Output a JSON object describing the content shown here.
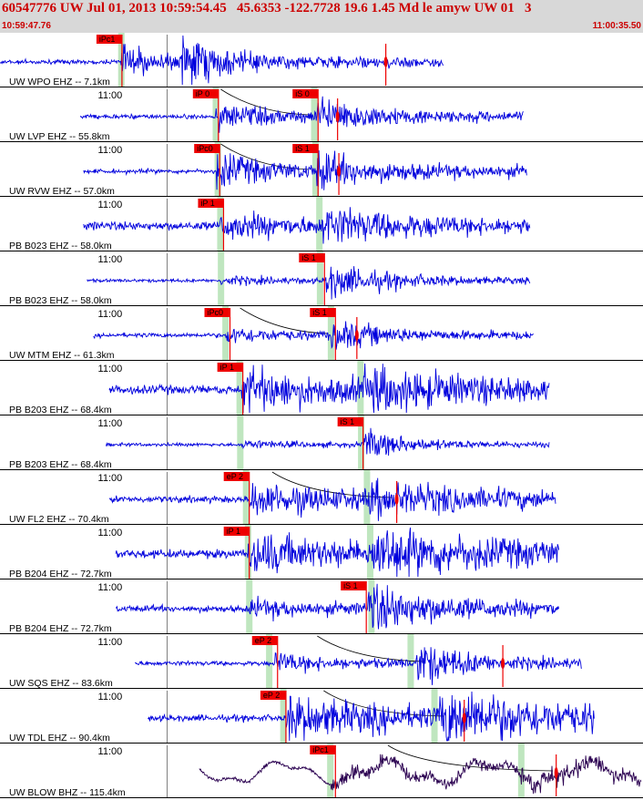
{
  "header": {
    "title": "60547776 UW Jul 01, 2013 10:59:54.45   45.6353 -122.7728 19.6 1.45 Md le amyw UW 01   3",
    "start_time": "10:59:47.76",
    "end_time": "11:00:35.50"
  },
  "colors": {
    "trace": "#0000dd",
    "trace_broadband": "#2a0050",
    "pick_label_bg": "#ee0000",
    "pick_line": "#ee0000",
    "theory_band": "#bfe6bf",
    "header_bg": "#d8d8d8"
  },
  "minute_label": "11:00",
  "traces": [
    {
      "label": "UW WPO EHZ -- 7.1km",
      "picks": [
        {
          "text": "iPc1",
          "t": 0.15
        }
      ],
      "theory": [
        0.188
      ],
      "sig_start": 0.0,
      "sig_end": 0.69,
      "p": 0.188,
      "s": 0.28,
      "amp_noise": 2,
      "amp_p": 12,
      "amp_s": 22,
      "coda": 0.06,
      "red_marks": [
        0.6
      ]
    },
    {
      "label": "UW LVP EHZ -- 55.8km",
      "picks": [
        {
          "text": "iP 0",
          "t": 0.3
        },
        {
          "text": "iS 0",
          "t": 0.455
        }
      ],
      "theory": [
        0.335,
        0.488
      ],
      "sig_start": 0.125,
      "sig_end": 0.815,
      "p": 0.336,
      "s": 0.49,
      "amp_noise": 2,
      "amp_p": 10,
      "amp_s": 16,
      "coda": 0.08,
      "red_marks": [
        0.525
      ],
      "curve": [
        0.4,
        0.48
      ]
    },
    {
      "label": "UW RVW EHZ -- 57.0km",
      "picks": [
        {
          "text": "iPc0",
          "t": 0.302
        },
        {
          "text": "iS 1",
          "t": 0.455
        }
      ],
      "theory": [
        0.338,
        0.49
      ],
      "sig_start": 0.13,
      "sig_end": 0.82,
      "p": 0.337,
      "s": 0.492,
      "amp_noise": 2,
      "amp_p": 14,
      "amp_s": 14,
      "coda": 0.08,
      "red_marks": [
        0.527
      ],
      "curve": [
        0.4,
        0.48
      ]
    },
    {
      "label": "PB B023 EHZ -- 58.0km",
      "picks": [
        {
          "text": "iP 1",
          "t": 0.308
        }
      ],
      "theory": [
        0.342,
        0.496
      ],
      "sig_start": 0.13,
      "sig_end": 0.825,
      "p": 0.343,
      "s": 0.5,
      "amp_noise": 4,
      "amp_p": 9,
      "amp_s": 13,
      "coda": 0.12,
      "red_marks": []
    },
    {
      "label": "PB B023 EHZ -- 58.0km",
      "picks": [
        {
          "text": "iS 1",
          "t": 0.465
        }
      ],
      "theory": [
        0.343,
        0.497
      ],
      "sig_start": 0.135,
      "sig_end": 0.825,
      "p": 0.343,
      "s": 0.505,
      "amp_noise": 1.5,
      "amp_p": 3,
      "amp_s": 15,
      "coda": 0.1,
      "red_marks": []
    },
    {
      "label": "UW MTM EHZ -- 61.3km",
      "picks": [
        {
          "text": "iPc0",
          "t": 0.318
        },
        {
          "text": "iS 1",
          "t": 0.482
        }
      ],
      "theory": [
        0.35,
        0.514
      ],
      "sig_start": 0.145,
      "sig_end": 0.83,
      "p": 0.352,
      "s": 0.515,
      "amp_noise": 2,
      "amp_p": 6,
      "amp_s": 12,
      "coda": 0.08,
      "red_marks": [
        0.555
      ],
      "curve": [
        0.43,
        0.51
      ]
    },
    {
      "label": "PB B203 EHZ -- 68.4km",
      "picks": [
        {
          "text": "iP 1",
          "t": 0.338
        }
      ],
      "theory": [
        0.372,
        0.56
      ],
      "sig_start": 0.17,
      "sig_end": 0.855,
      "p": 0.376,
      "s": 0.565,
      "amp_noise": 4,
      "amp_p": 16,
      "amp_s": 15,
      "coda": 0.15,
      "red_marks": []
    },
    {
      "label": "PB B203 EHZ -- 68.4km",
      "picks": [
        {
          "text": "iS 1",
          "t": 0.525
        }
      ],
      "theory": [
        0.373,
        0.561
      ],
      "sig_start": 0.165,
      "sig_end": 0.855,
      "p": 0.376,
      "s": 0.566,
      "amp_noise": 1.5,
      "amp_p": 3,
      "amp_s": 13,
      "coda": 0.07,
      "red_marks": []
    },
    {
      "label": "UW FL2 EHZ -- 70.4km",
      "picks": [
        {
          "text": "eP 2",
          "t": 0.348
        }
      ],
      "theory": [
        0.382,
        0.57
      ],
      "sig_start": 0.17,
      "sig_end": 0.865,
      "p": 0.388,
      "s": 0.575,
      "amp_noise": 3,
      "amp_p": 12,
      "amp_s": 10,
      "coda": 0.18,
      "red_marks": [
        0.617
      ],
      "curve": [
        0.48,
        0.61
      ]
    },
    {
      "label": "PB B204 EHZ -- 72.7km",
      "picks": [
        {
          "text": "iP 1",
          "t": 0.348
        }
      ],
      "theory": [
        0.385,
        0.575
      ],
      "sig_start": 0.18,
      "sig_end": 0.87,
      "p": 0.386,
      "s": 0.578,
      "amp_noise": 4,
      "amp_p": 14,
      "amp_s": 18,
      "coda": 0.18,
      "red_marks": []
    },
    {
      "label": "PB B204 EHZ -- 72.7km",
      "picks": [
        {
          "text": "iS 1",
          "t": 0.53
        }
      ],
      "theory": [
        0.387,
        0.577
      ],
      "sig_start": 0.18,
      "sig_end": 0.87,
      "p": 0.387,
      "s": 0.572,
      "amp_noise": 3,
      "amp_p": 6,
      "amp_s": 20,
      "coda": 0.12,
      "red_marks": []
    },
    {
      "label": "UW SQS EHZ -- 83.6km",
      "picks": [
        {
          "text": "eP 2",
          "t": 0.392
        }
      ],
      "theory": [
        0.418,
        0.638
      ],
      "sig_start": 0.21,
      "sig_end": 0.905,
      "p": 0.428,
      "s": 0.648,
      "amp_noise": 2,
      "amp_p": 8,
      "amp_s": 20,
      "coda": 0.07,
      "red_marks": [
        0.782
      ],
      "curve": [
        0.55,
        0.66
      ]
    },
    {
      "label": "UW TDL EHZ -- 90.4km",
      "picks": [
        {
          "text": "eP 2",
          "t": 0.405
        }
      ],
      "theory": [
        0.44,
        0.675
      ],
      "sig_start": 0.23,
      "sig_end": 0.925,
      "p": 0.445,
      "s": 0.684,
      "amp_noise": 3,
      "amp_p": 16,
      "amp_s": 22,
      "coda": 0.18,
      "red_marks": [
        0.722
      ],
      "curve": [
        0.56,
        0.69
      ]
    },
    {
      "label": "UW BLOW BHZ -- 115.4km",
      "picks": [
        {
          "text": "iPc1",
          "t": 0.482
        }
      ],
      "theory": [
        0.513,
        0.81
      ],
      "sig_start": 0.31,
      "sig_end": 0.998,
      "p": 0.515,
      "s": 0.81,
      "amp_noise": 2,
      "amp_p": 7,
      "amp_s": 9,
      "coda": 0.25,
      "red_marks": [
        0.865
      ],
      "curve": [
        0.66,
        0.86
      ],
      "broadband": true
    }
  ]
}
